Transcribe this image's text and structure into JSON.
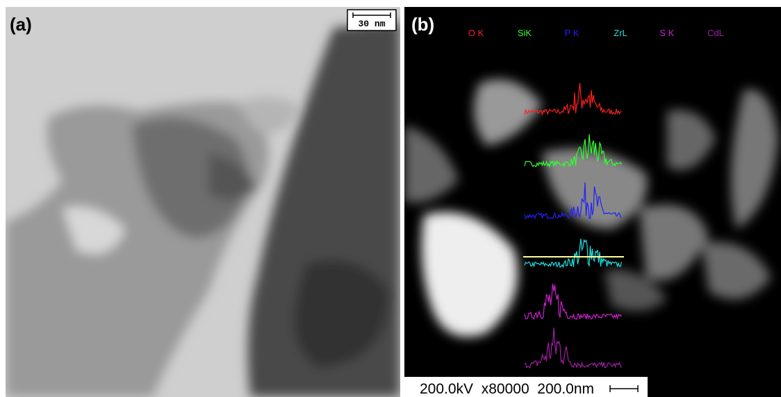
{
  "panel_a": {
    "label": "(a)",
    "scale_bar": "30 nm"
  },
  "panel_b": {
    "label": "(b)",
    "elements": [
      "O K",
      "SiK",
      "P K",
      "ZrL",
      "S K",
      "CdL"
    ],
    "info_bar": "200.0kV  x80000  200.0nm"
  }
}
